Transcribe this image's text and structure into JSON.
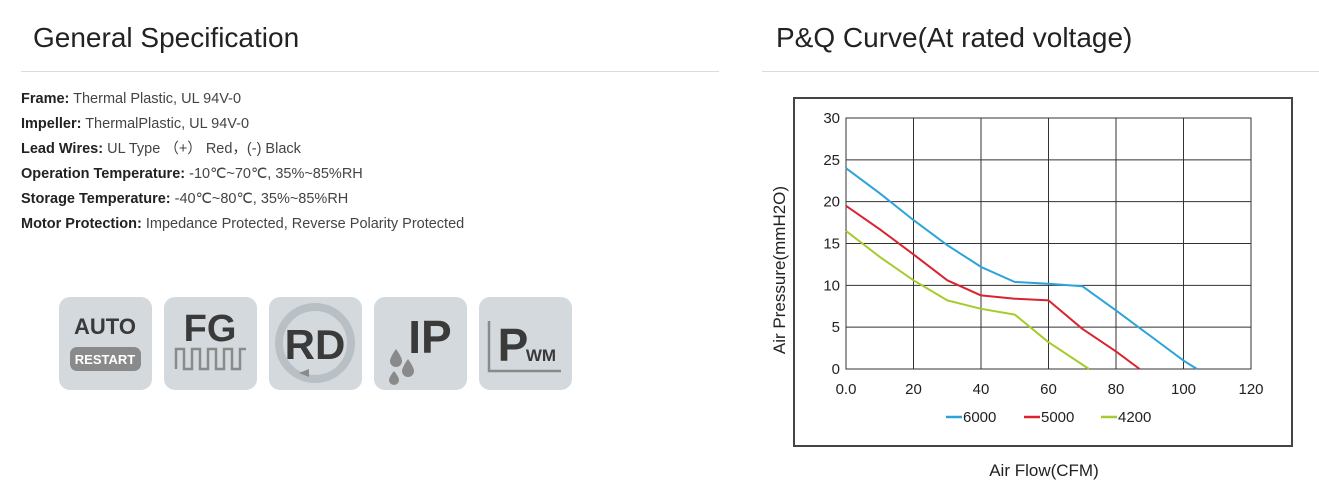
{
  "left": {
    "title": "General Specification",
    "specs": [
      {
        "label": "Frame:",
        "value": " Thermal Plastic, UL 94V-0"
      },
      {
        "label": "Impeller:",
        "value": " ThermalPlastic, UL 94V-0"
      },
      {
        "label": "Lead Wires:",
        "value": " UL Type （+） Red，(-) Black"
      },
      {
        "label": "Operation Temperature:",
        "value": " -10℃~70℃, 35%~85%RH"
      },
      {
        "label": "Storage Temperature:",
        "value": " -40℃~80℃, 35%~85%RH"
      },
      {
        "label": "Motor Protection:",
        "value": " Impedance Protected, Reverse Polarity Protected"
      }
    ],
    "feature_icons": [
      {
        "name": "auto-restart-icon",
        "text_top": "AUTO",
        "text_bottom": "RESTART"
      },
      {
        "name": "fg-icon",
        "text_top": "FG"
      },
      {
        "name": "rd-icon",
        "text_top": "RD"
      },
      {
        "name": "ip-icon",
        "text_top": "IP"
      },
      {
        "name": "pwm-icon",
        "text_top": "P",
        "text_bottom": "WM"
      }
    ],
    "icon_colors": {
      "tile": "#d3d9dd",
      "glyph": "#3a3a3a",
      "accent": "#8a8a8a"
    }
  },
  "right": {
    "title": "P&Q Curve(At rated voltage)"
  },
  "chart_data": {
    "type": "line",
    "title": "",
    "xlabel": "Air Flow(CFM)",
    "ylabel": "Air Pressure(mmH2O)",
    "xlim": [
      0,
      120
    ],
    "ylim": [
      0,
      30
    ],
    "x_ticks": [
      "0.0",
      "20",
      "40",
      "60",
      "80",
      "100",
      "120"
    ],
    "y_ticks": [
      "0",
      "5",
      "10",
      "15",
      "20",
      "25",
      "30"
    ],
    "grid": true,
    "legend": "bottom-center",
    "series": [
      {
        "name": "6000",
        "color": "#2ca3db",
        "points": [
          [
            0,
            24
          ],
          [
            10,
            21
          ],
          [
            20,
            17.8
          ],
          [
            30,
            14.8
          ],
          [
            40,
            12.2
          ],
          [
            50,
            10.4
          ],
          [
            60,
            10.2
          ],
          [
            70,
            9.9
          ],
          [
            80,
            7
          ],
          [
            90,
            4
          ],
          [
            100,
            1
          ],
          [
            104,
            0
          ]
        ]
      },
      {
        "name": "5000",
        "color": "#d9232e",
        "points": [
          [
            0,
            19.5
          ],
          [
            10,
            16.7
          ],
          [
            20,
            13.7
          ],
          [
            30,
            10.6
          ],
          [
            40,
            8.8
          ],
          [
            50,
            8.4
          ],
          [
            60,
            8.2
          ],
          [
            70,
            4.8
          ],
          [
            80,
            2.1
          ],
          [
            87,
            0
          ]
        ]
      },
      {
        "name": "4200",
        "color": "#a5cc2c",
        "points": [
          [
            0,
            16.5
          ],
          [
            10,
            13.4
          ],
          [
            20,
            10.6
          ],
          [
            30,
            8.2
          ],
          [
            40,
            7.2
          ],
          [
            50,
            6.5
          ],
          [
            60,
            3.2
          ],
          [
            72,
            0
          ]
        ]
      }
    ]
  }
}
